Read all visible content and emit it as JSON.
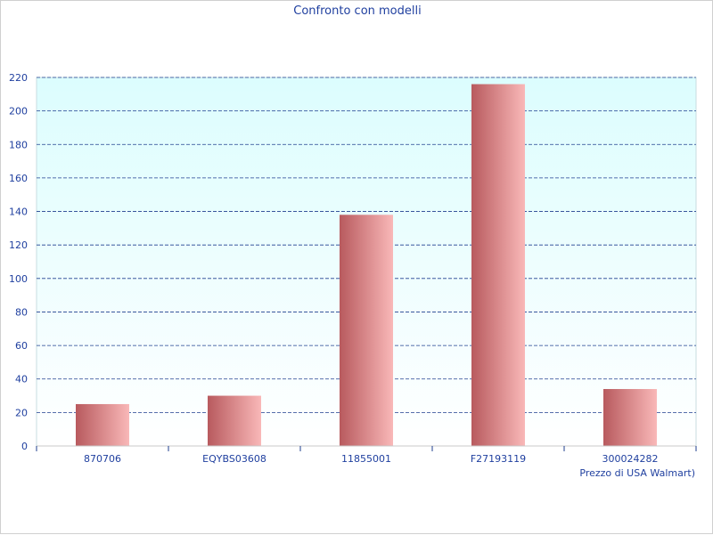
{
  "chart_data": {
    "type": "bar",
    "title": "Confronto con modelli",
    "xlabel": "Prezzo di USA Walmart)",
    "ylabel": "",
    "categories": [
      "870706",
      "EQYBS03608",
      "11855001",
      "F27193119",
      "300024282"
    ],
    "values": [
      25,
      30,
      138,
      216,
      34
    ],
    "ylim": [
      0,
      220
    ],
    "yticks": [
      0,
      20,
      40,
      60,
      80,
      100,
      120,
      140,
      160,
      180,
      200,
      220
    ],
    "grid": true,
    "legend": "none",
    "colors": {
      "bar_dark": "#b85a5e",
      "bar_light": "#f9b8b8",
      "plot_bg_top": "#dcfdfe",
      "plot_bg_bottom": "#ffffff",
      "grid": "#1f3f8f",
      "text": "#1f3f9f"
    }
  }
}
